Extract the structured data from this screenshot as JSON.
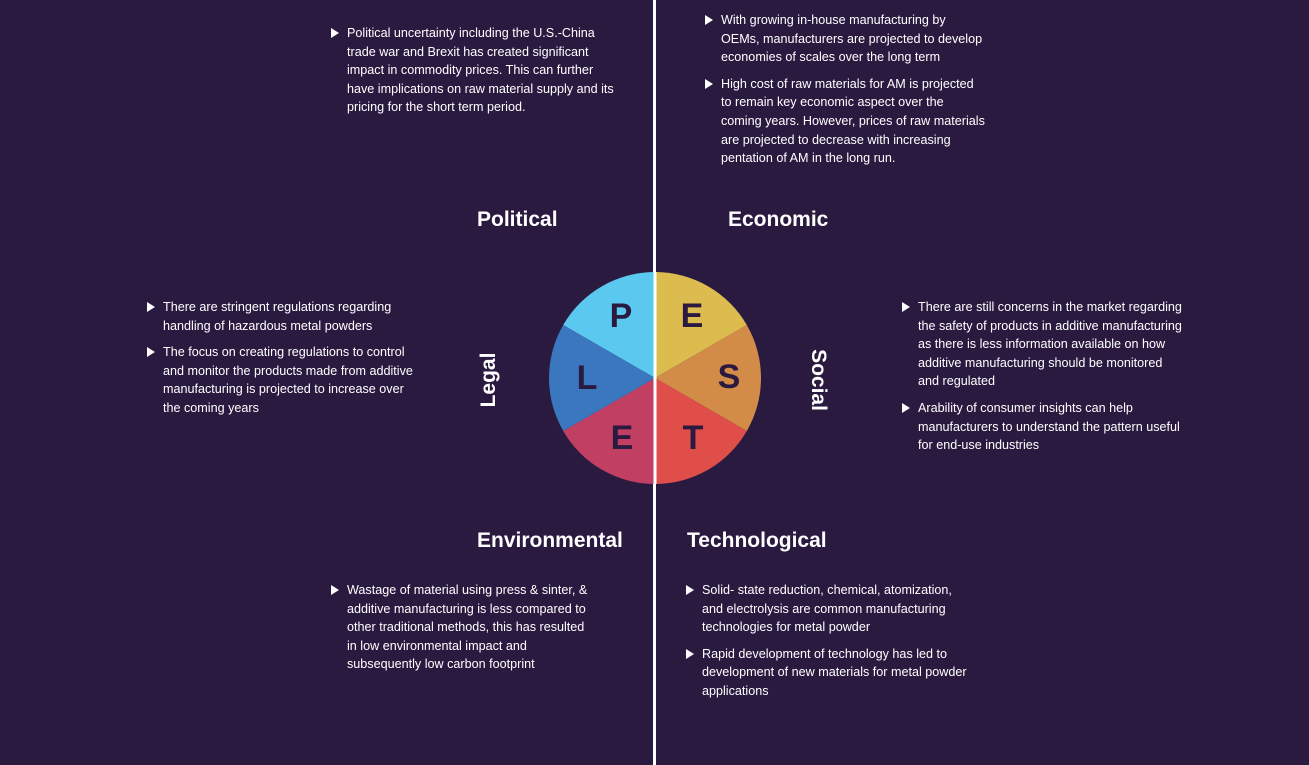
{
  "political": {
    "title": "Political",
    "bullets": [
      "Political uncertainty including the U.S.-China trade war and Brexit has created significant impact in commodity prices. This can further have implications on raw material supply and its pricing for the short term period."
    ]
  },
  "economic": {
    "title": "Economic",
    "bullets": [
      "With growing in-house manufacturing by OEMs, manufacturers are projected to develop economies of scales over the long term",
      "High cost of raw materials for AM is projected to remain key economic aspect over the coming years. However, prices of raw materials are projected to decrease with increasing pentation of AM in the long run."
    ]
  },
  "legal": {
    "title": "Legal",
    "bullets": [
      "There are stringent regulations regarding handling of hazardous metal powders",
      "The focus on creating regulations to control and monitor the products made from additive manufacturing is projected to increase over the coming years"
    ]
  },
  "social": {
    "title": "Social",
    "bullets": [
      "There are still concerns in the market regarding the safety of products in additive manufacturing as there is less information available on how additive manufacturing should be monitored and regulated",
      "Arability of consumer insights can help manufacturers to understand the pattern useful for end-use industries"
    ]
  },
  "environmental": {
    "title": "Environmental",
    "bullets": [
      "Wastage of material using press & sinter, & additive manufacturing is less compared to other traditional methods, this has resulted in low environmental impact and subsequently low carbon footprint"
    ]
  },
  "technological": {
    "title": "Technological",
    "bullets": [
      "Solid- state reduction, chemical, atomization, and electrolysis are common manufacturing technologies for metal powder",
      "Rapid development of technology has led to development of new materials for metal powder applications"
    ]
  },
  "pie": {
    "letters": {
      "p": "P",
      "e_top": "E",
      "s": "S",
      "t": "T",
      "e_bottom": "E",
      "l": "L"
    },
    "colors": {
      "political": "#5bc8f0",
      "economic": "#dcbc4e",
      "social": "#d38c47",
      "technological": "#df4e48",
      "environmental": "#c23f64",
      "legal": "#3b77be",
      "letter": "#2b1a40",
      "background": "#2b1a40"
    }
  }
}
